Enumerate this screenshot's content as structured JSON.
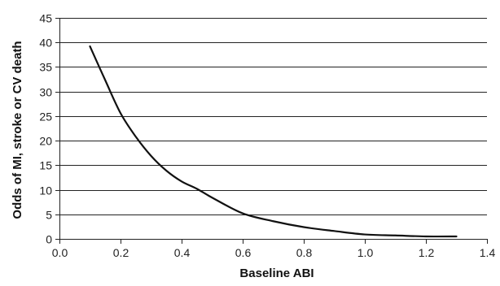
{
  "chart_data": {
    "type": "line",
    "title": "",
    "xlabel": "Baseline ABI",
    "ylabel": "Odds of MI, stroke or CV death",
    "xlim": [
      0,
      1.4
    ],
    "ylim": [
      0,
      45
    ],
    "x_ticks": [
      0,
      0.2,
      0.4,
      0.6,
      0.8,
      1.0,
      1.2,
      1.4
    ],
    "x_tick_labels": [
      "0.0",
      "0.2",
      "0.4",
      "0.6",
      "0.8",
      "1.0",
      "1.2",
      "1.4"
    ],
    "y_ticks": [
      0,
      5,
      10,
      15,
      20,
      25,
      30,
      35,
      40,
      45
    ],
    "y_tick_labels": [
      "0",
      "5",
      "10",
      "15",
      "20",
      "25",
      "30",
      "35",
      "40",
      "45"
    ],
    "grid": "horizontal",
    "legend": "none",
    "colors": {
      "line": "#111111",
      "grid": "#222222",
      "axis": "#222222"
    },
    "series": [
      {
        "x": [
          0.1,
          0.15,
          0.2,
          0.25,
          0.3,
          0.35,
          0.4,
          0.45,
          0.5,
          0.6,
          0.7,
          0.8,
          0.9,
          1.0,
          1.1,
          1.2,
          1.3
        ],
        "values": [
          39.2,
          32.3,
          25.6,
          20.8,
          16.9,
          13.9,
          11.7,
          10.2,
          8.4,
          5.2,
          3.6,
          2.4,
          1.6,
          0.9,
          0.7,
          0.5,
          0.5
        ]
      }
    ]
  }
}
